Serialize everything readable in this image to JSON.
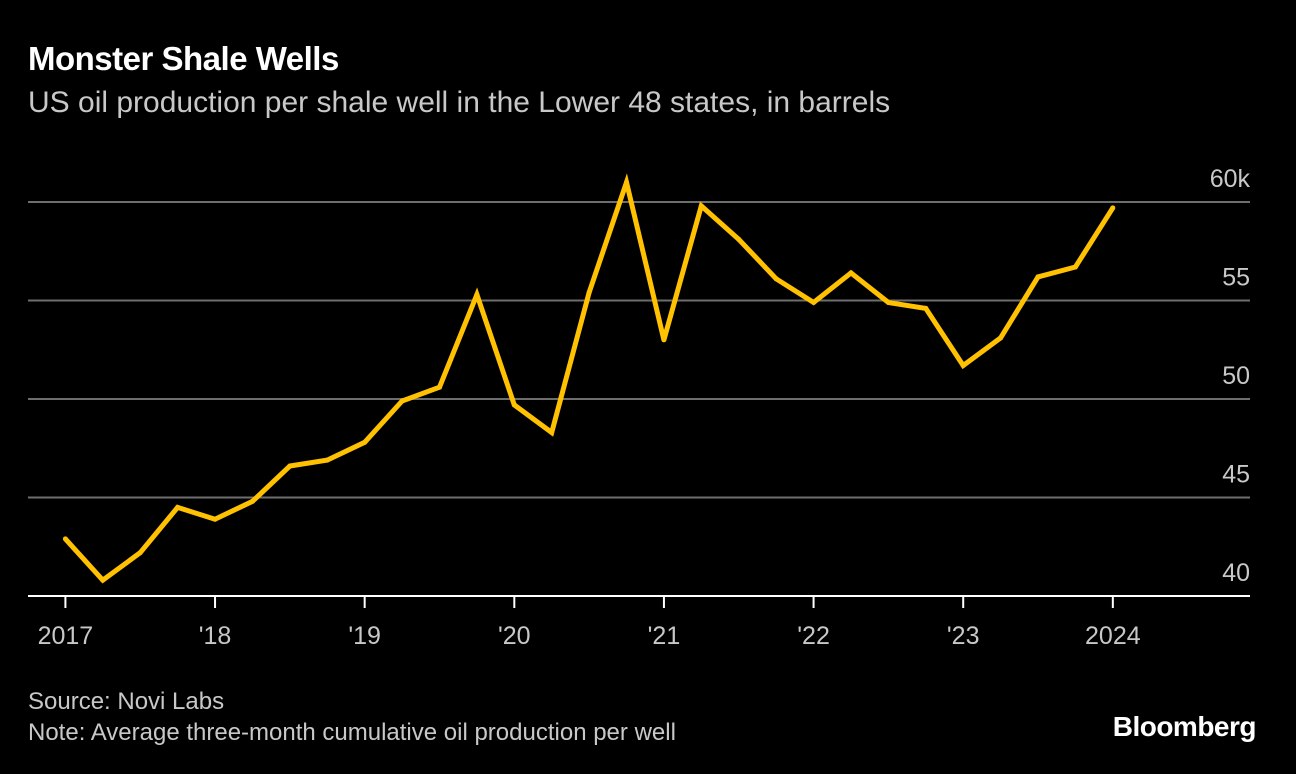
{
  "header": {
    "title": "Monster Shale Wells",
    "subtitle": "US oil production per shale well in the Lower 48 states, in barrels"
  },
  "footer": {
    "source": "Source: Novi Labs",
    "note": "Note: Average three-month cumulative oil production per well",
    "brand": "Bloomberg"
  },
  "colors": {
    "background": "#000000",
    "line": "#FFC100",
    "grid": "#6e6e6e",
    "text": "#ffffff",
    "muted": "#c8c8c8"
  },
  "chart_data": {
    "type": "line",
    "title": "Monster Shale Wells",
    "subtitle": "US oil production per shale well in the Lower 48 states, in barrels",
    "xlabel": "",
    "ylabel": "",
    "ylim": [
      40,
      60
    ],
    "xlim": [
      "2016-10",
      "2024-12"
    ],
    "grid": true,
    "y_axis_side": "right",
    "y_ticks": [
      {
        "value": 40,
        "label": "40"
      },
      {
        "value": 45,
        "label": "45"
      },
      {
        "value": 50,
        "label": "50"
      },
      {
        "value": 55,
        "label": "55"
      },
      {
        "value": 60,
        "label": "60k"
      }
    ],
    "x_ticks": [
      {
        "value": "2017-01",
        "label": "2017"
      },
      {
        "value": "2018-01",
        "label": "'18"
      },
      {
        "value": "2019-01",
        "label": "'19"
      },
      {
        "value": "2020-01",
        "label": "'20"
      },
      {
        "value": "2021-01",
        "label": "'21"
      },
      {
        "value": "2022-01",
        "label": "'22"
      },
      {
        "value": "2023-01",
        "label": "'23"
      },
      {
        "value": "2024-01",
        "label": "2024"
      }
    ],
    "series": [
      {
        "color": "#FFC100",
        "points": [
          {
            "x": "2017-01",
            "y": 42.9
          },
          {
            "x": "2017-04",
            "y": 40.8
          },
          {
            "x": "2017-07",
            "y": 42.2
          },
          {
            "x": "2017-10",
            "y": 44.5
          },
          {
            "x": "2018-01",
            "y": 43.9
          },
          {
            "x": "2018-04",
            "y": 44.8
          },
          {
            "x": "2018-07",
            "y": 46.6
          },
          {
            "x": "2018-10",
            "y": 46.9
          },
          {
            "x": "2019-01",
            "y": 47.8
          },
          {
            "x": "2019-04",
            "y": 49.9
          },
          {
            "x": "2019-07",
            "y": 50.6
          },
          {
            "x": "2019-10",
            "y": 55.3
          },
          {
            "x": "2020-01",
            "y": 49.7
          },
          {
            "x": "2020-04",
            "y": 48.3
          },
          {
            "x": "2020-07",
            "y": 55.4
          },
          {
            "x": "2020-10",
            "y": 61.0
          },
          {
            "x": "2021-01",
            "y": 53.0
          },
          {
            "x": "2021-04",
            "y": 59.8
          },
          {
            "x": "2021-07",
            "y": 58.1
          },
          {
            "x": "2021-10",
            "y": 56.1
          },
          {
            "x": "2022-01",
            "y": 54.9
          },
          {
            "x": "2022-04",
            "y": 56.4
          },
          {
            "x": "2022-07",
            "y": 54.9
          },
          {
            "x": "2022-10",
            "y": 54.6
          },
          {
            "x": "2023-01",
            "y": 51.7
          },
          {
            "x": "2023-04",
            "y": 53.1
          },
          {
            "x": "2023-07",
            "y": 56.2
          },
          {
            "x": "2023-10",
            "y": 56.7
          },
          {
            "x": "2024-01",
            "y": 59.7
          }
        ]
      }
    ]
  }
}
